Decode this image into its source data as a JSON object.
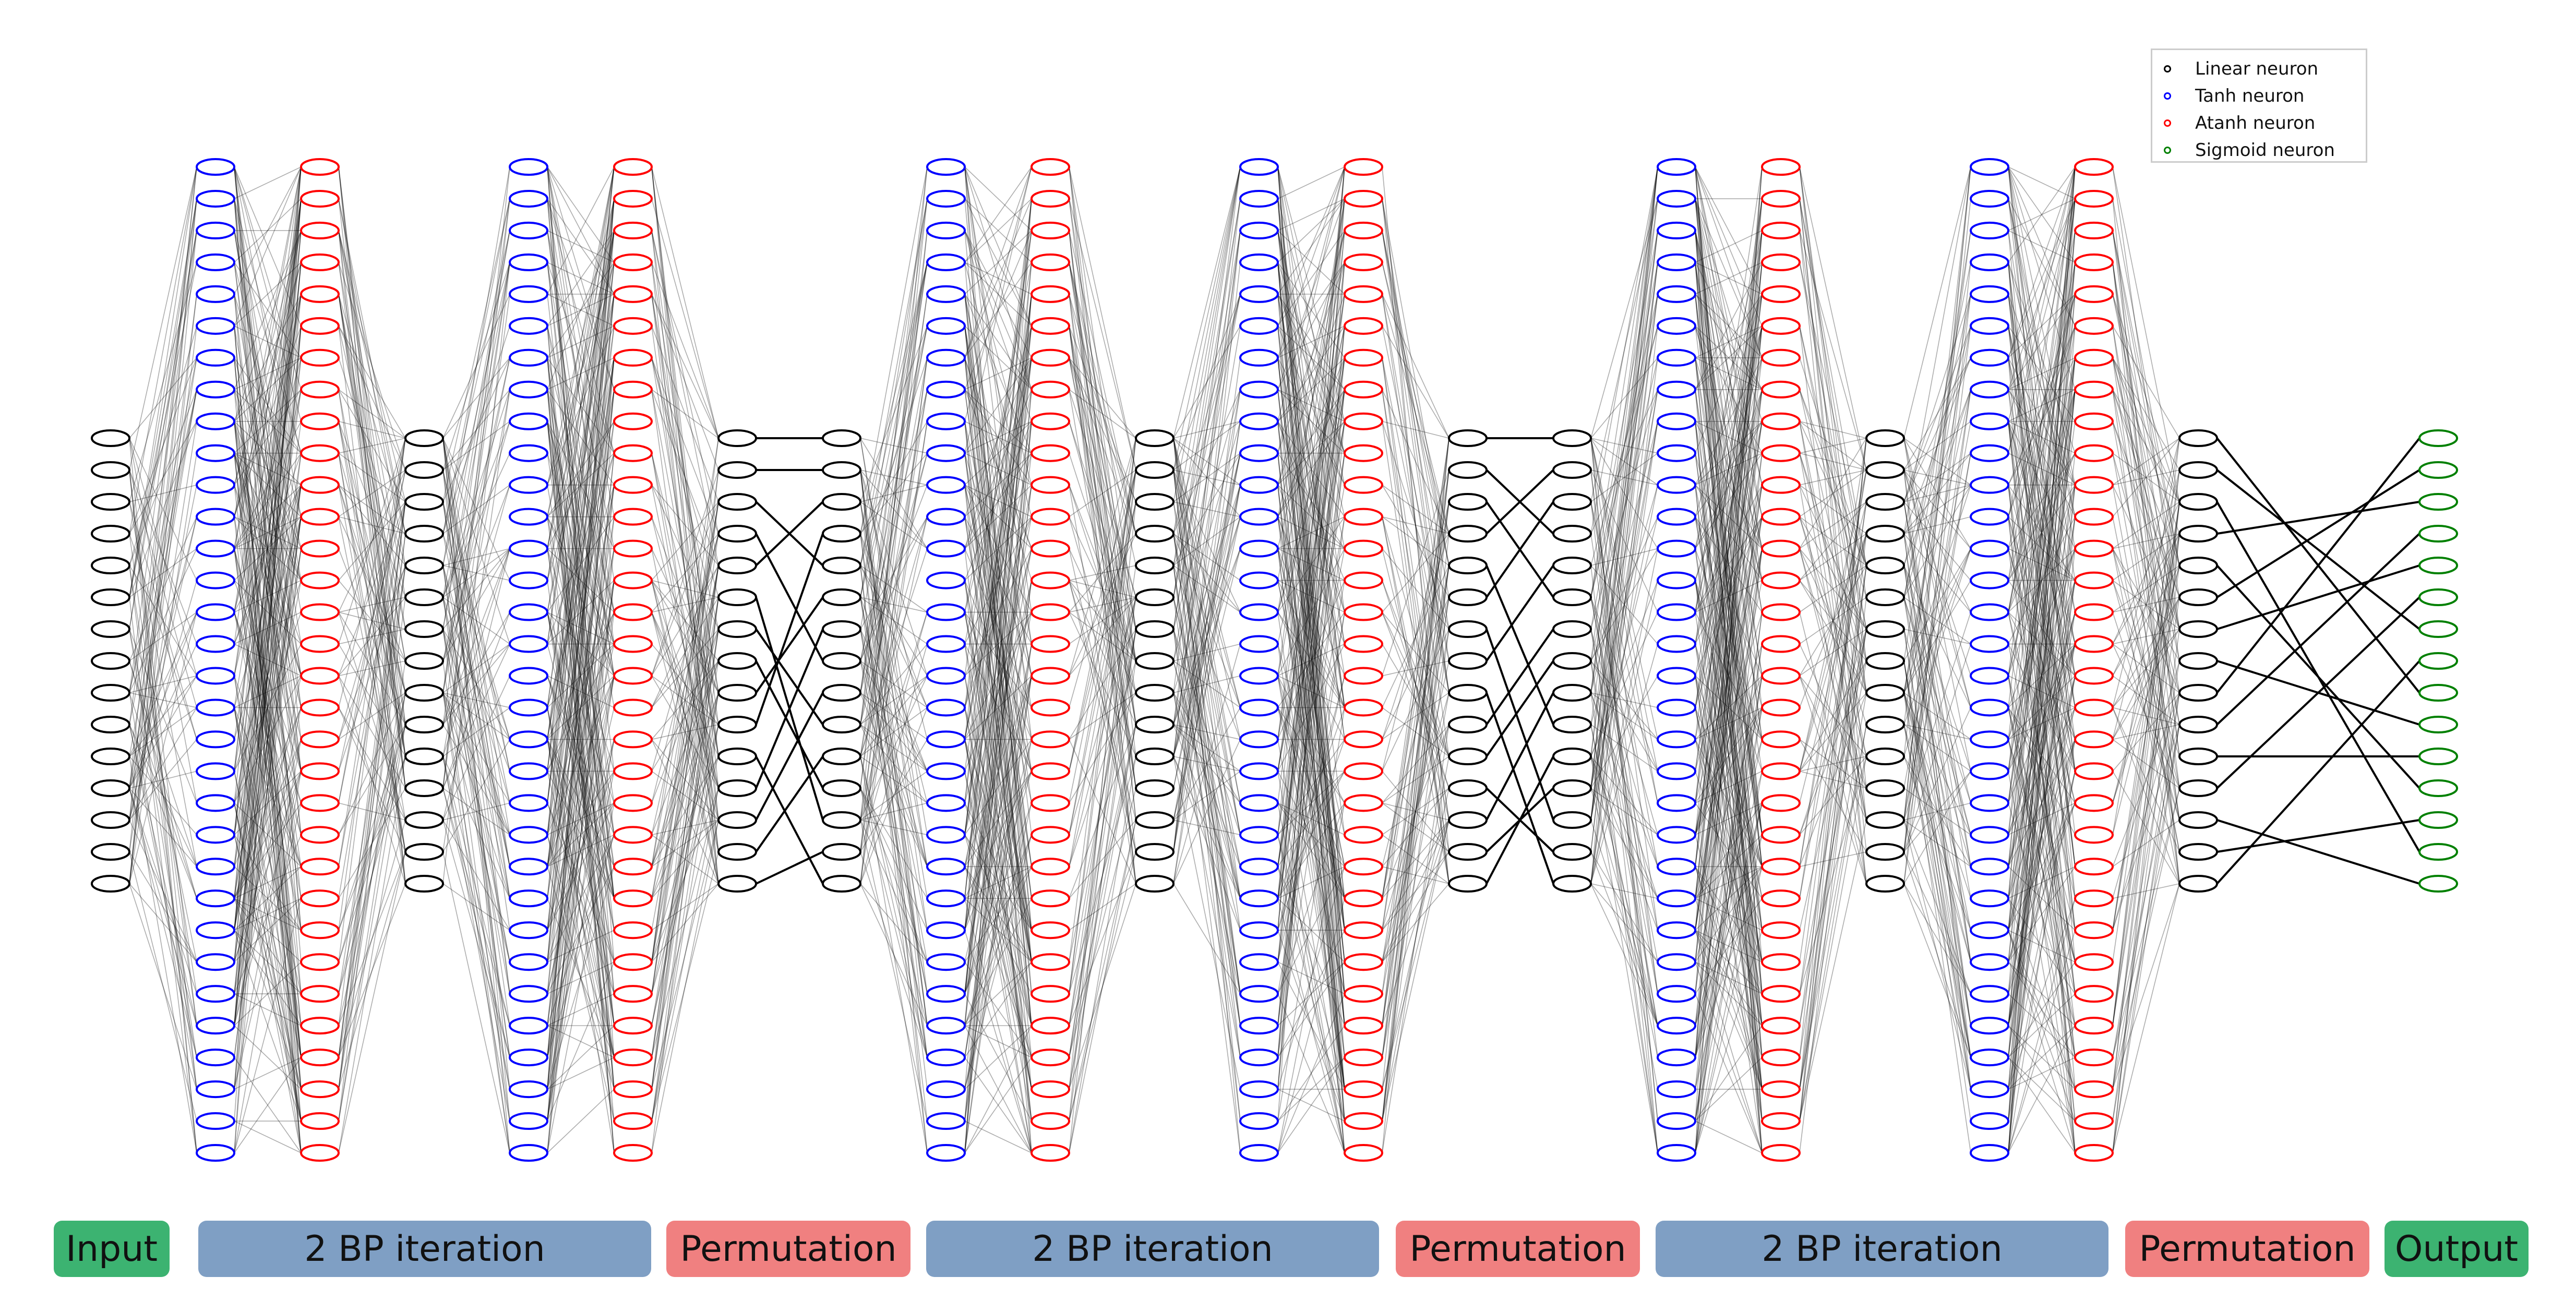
{
  "legend": {
    "items": [
      {
        "label": "Linear neuron",
        "color": "#000000"
      },
      {
        "label": "Tanh neuron",
        "color": "#0000ff"
      },
      {
        "label": "Atanh neuron",
        "color": "#ff0000"
      },
      {
        "label": "Sigmoid neuron",
        "color": "#008000"
      }
    ]
  },
  "stages": [
    {
      "label": "Input",
      "color": "#3cb371"
    },
    {
      "label": "2 BP iteration",
      "color": "#7f9fc4"
    },
    {
      "label": "Permutation",
      "color": "#f08080"
    },
    {
      "label": "2 BP iteration",
      "color": "#7f9fc4"
    },
    {
      "label": "Permutation",
      "color": "#f08080"
    },
    {
      "label": "2 BP iteration",
      "color": "#7f9fc4"
    },
    {
      "label": "Permutation",
      "color": "#f08080"
    },
    {
      "label": "Output",
      "color": "#3cb371"
    }
  ],
  "network": {
    "layers": [
      {
        "type": "linear",
        "neurons": 15
      },
      {
        "type": "tanh",
        "neurons": 32
      },
      {
        "type": "atanh",
        "neurons": 32
      },
      {
        "type": "linear",
        "neurons": 15
      },
      {
        "type": "tanh",
        "neurons": 32
      },
      {
        "type": "atanh",
        "neurons": 32
      },
      {
        "type": "linear",
        "neurons": 15
      },
      {
        "type": "linear",
        "neurons": 15
      },
      {
        "type": "tanh",
        "neurons": 32
      },
      {
        "type": "atanh",
        "neurons": 32
      },
      {
        "type": "linear",
        "neurons": 15
      },
      {
        "type": "tanh",
        "neurons": 32
      },
      {
        "type": "atanh",
        "neurons": 32
      },
      {
        "type": "linear",
        "neurons": 15
      },
      {
        "type": "linear",
        "neurons": 15
      },
      {
        "type": "tanh",
        "neurons": 32
      },
      {
        "type": "atanh",
        "neurons": 32
      },
      {
        "type": "linear",
        "neurons": 15
      },
      {
        "type": "tanh",
        "neurons": 32
      },
      {
        "type": "atanh",
        "neurons": 32
      },
      {
        "type": "linear",
        "neurons": 15
      },
      {
        "type": "sigmoid",
        "neurons": 15
      }
    ],
    "permutations": [
      [
        0,
        1,
        4,
        7,
        2,
        12,
        9,
        11,
        5,
        3,
        14,
        6,
        8,
        10,
        13
      ],
      [
        0,
        3,
        5,
        1,
        9,
        2,
        12,
        4,
        14,
        6,
        7,
        13,
        8,
        11,
        10
      ],
      [
        8,
        6,
        13,
        2,
        11,
        1,
        4,
        9,
        0,
        3,
        10,
        5,
        14,
        12,
        7
      ]
    ],
    "colors": {
      "linear": "#000000",
      "tanh": "#0000ff",
      "atanh": "#ff0000",
      "sigmoid": "#008000"
    }
  }
}
